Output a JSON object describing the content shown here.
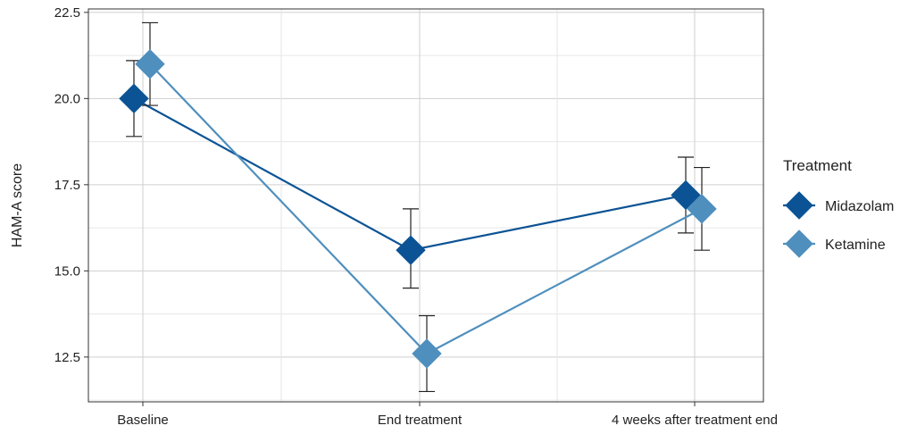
{
  "chart_data": {
    "type": "line",
    "title": "",
    "xlabel": "",
    "ylabel": "HAM-A score",
    "categories": [
      "Baseline",
      "End treatment",
      "4 weeks after treatment end"
    ],
    "ylim": [
      11.2,
      22.6
    ],
    "yticks": [
      12.5,
      15.0,
      17.5,
      20.0,
      22.5
    ],
    "ytick_labels": [
      "12.5",
      "15.0",
      "17.5",
      "20.0",
      "22.5"
    ],
    "grid": true,
    "legend": {
      "title": "Treatment",
      "position": "right"
    },
    "series": [
      {
        "name": "Midazolam",
        "color": "#0b5394",
        "marker": "diamond",
        "values": [
          20.0,
          15.6,
          17.2
        ],
        "err_low": [
          18.9,
          14.5,
          16.1
        ],
        "err_high": [
          21.1,
          16.8,
          18.3
        ]
      },
      {
        "name": "Ketamine",
        "color": "#4f8fbd",
        "marker": "diamond",
        "values": [
          21.0,
          12.6,
          16.8
        ],
        "err_low": [
          19.8,
          11.5,
          15.6
        ],
        "err_high": [
          22.2,
          13.7,
          18.0
        ]
      }
    ]
  }
}
